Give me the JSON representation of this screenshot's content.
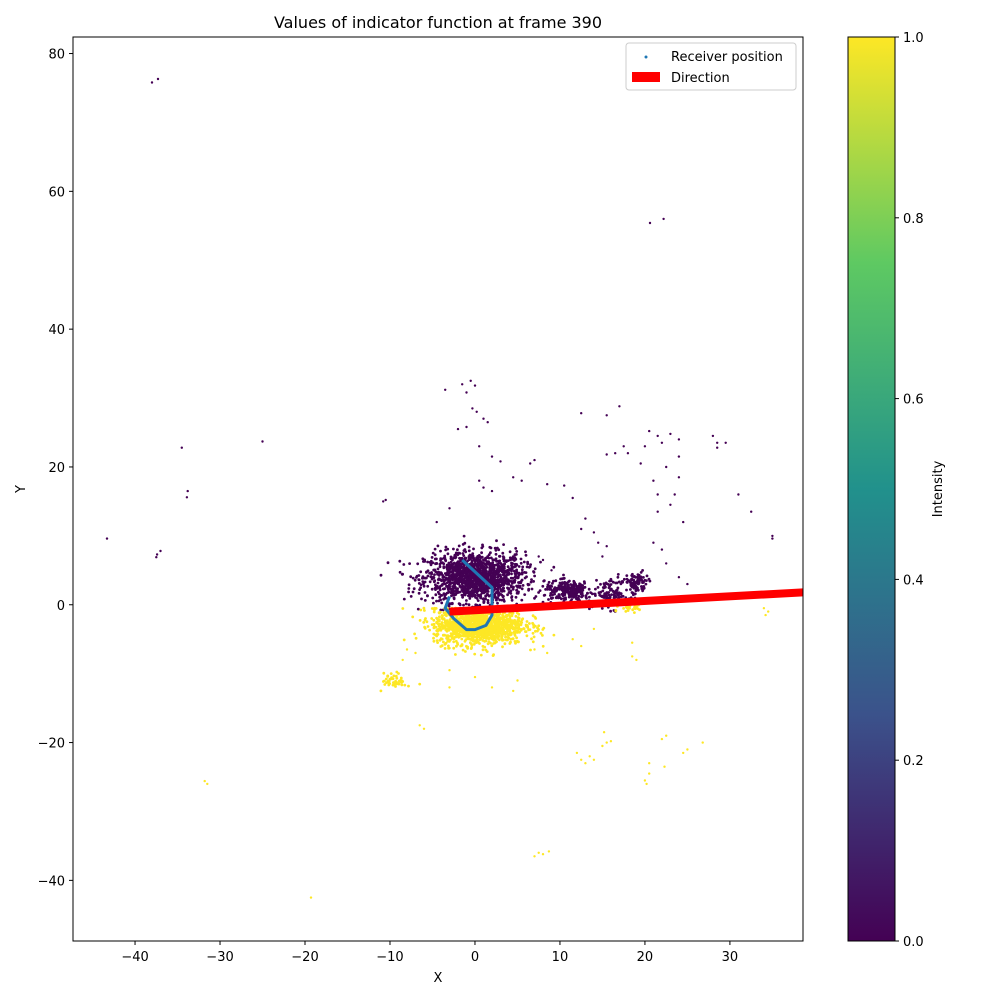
{
  "chart_data": {
    "type": "scatter",
    "title": "Values of indicator function at frame 390",
    "xlabel": "X",
    "ylabel": "Y",
    "xlim": [
      -47.3,
      38.6
    ],
    "ylim": [
      -48.8,
      82.4
    ],
    "xticks": [
      -40,
      -30,
      -20,
      -10,
      0,
      10,
      20,
      30
    ],
    "yticks": [
      -40,
      -20,
      0,
      20,
      40,
      60,
      80
    ],
    "grid": false,
    "legend": {
      "placement": "top-right",
      "entries": [
        {
          "label": "Receiver position",
          "marker": "dot",
          "color": "#1f77b4"
        },
        {
          "label": "Direction",
          "marker": "patch",
          "color": "#ff0000"
        }
      ]
    },
    "colorbar": {
      "label": "Intensity",
      "range": [
        0.0,
        1.0
      ],
      "ticks": [
        "0.0",
        "0.2",
        "0.4",
        "0.6",
        "0.8",
        "1.0"
      ],
      "colormap": "viridis",
      "stops": [
        "#440154",
        "#3b528b",
        "#21918c",
        "#5ec962",
        "#fde725"
      ]
    },
    "colors": {
      "value_0": "#440154",
      "value_1": "#fde725",
      "path": "#1f77b4",
      "direction": "#ff0000"
    },
    "dense_clusters": [
      {
        "value": 0,
        "center": [
          0.0,
          4.0
        ],
        "spread": [
          4.2,
          2.6
        ],
        "count": 1500
      },
      {
        "value": 1,
        "center": [
          0.5,
          -3.0
        ],
        "spread": [
          3.8,
          2.0
        ],
        "count": 1300
      },
      {
        "value": 0,
        "center": [
          11.0,
          2.0
        ],
        "spread": [
          2.0,
          1.0
        ],
        "count": 250
      },
      {
        "value": 0,
        "center": [
          16.0,
          1.5
        ],
        "spread": [
          1.5,
          1.5
        ],
        "count": 120
      },
      {
        "value": 0,
        "center": [
          19.0,
          3.0
        ],
        "spread": [
          1.0,
          1.2
        ],
        "count": 100
      },
      {
        "value": 1,
        "center": [
          -9.5,
          -11.0
        ],
        "spread": [
          1.0,
          0.8
        ],
        "count": 50
      },
      {
        "value": 1,
        "center": [
          18.5,
          -0.5
        ],
        "spread": [
          1.0,
          0.5
        ],
        "count": 30
      }
    ],
    "scatter_points": [
      {
        "x": -38.0,
        "y": 75.8,
        "value": 0
      },
      {
        "x": -37.3,
        "y": 76.3,
        "value": 0
      },
      {
        "x": 20.6,
        "y": 55.4,
        "value": 0
      },
      {
        "x": 22.2,
        "y": 56.0,
        "value": 0
      },
      {
        "x": -34.5,
        "y": 22.8,
        "value": 0
      },
      {
        "x": -25.0,
        "y": 23.7,
        "value": 0
      },
      {
        "x": -43.3,
        "y": 9.6,
        "value": 0
      },
      {
        "x": -33.8,
        "y": 16.5,
        "value": 0
      },
      {
        "x": -33.9,
        "y": 15.6,
        "value": 0
      },
      {
        "x": -37.4,
        "y": 7.3,
        "value": 0
      },
      {
        "x": -37.0,
        "y": 7.8,
        "value": 0
      },
      {
        "x": -37.5,
        "y": 6.9,
        "value": 0
      },
      {
        "x": -10.5,
        "y": 15.2,
        "value": 0
      },
      {
        "x": -10.8,
        "y": 15.0,
        "value": 0
      },
      {
        "x": -3.5,
        "y": 31.2,
        "value": 0
      },
      {
        "x": -1.5,
        "y": 32.0,
        "value": 0
      },
      {
        "x": -0.5,
        "y": 32.5,
        "value": 0
      },
      {
        "x": 0.0,
        "y": 31.8,
        "value": 0
      },
      {
        "x": -1.0,
        "y": 30.8,
        "value": 0
      },
      {
        "x": -0.3,
        "y": 28.5,
        "value": 0
      },
      {
        "x": 0.2,
        "y": 28.0,
        "value": 0
      },
      {
        "x": -2.0,
        "y": 25.5,
        "value": 0
      },
      {
        "x": -1.0,
        "y": 25.8,
        "value": 0
      },
      {
        "x": 1.0,
        "y": 27.0,
        "value": 0
      },
      {
        "x": 1.5,
        "y": 26.5,
        "value": 0
      },
      {
        "x": 0.5,
        "y": 23.0,
        "value": 0
      },
      {
        "x": 2.0,
        "y": 21.5,
        "value": 0
      },
      {
        "x": 3.0,
        "y": 20.8,
        "value": 0
      },
      {
        "x": 0.5,
        "y": 18.0,
        "value": 0
      },
      {
        "x": 1.0,
        "y": 17.0,
        "value": 0
      },
      {
        "x": 2.0,
        "y": 16.5,
        "value": 0
      },
      {
        "x": 4.5,
        "y": 18.5,
        "value": 0
      },
      {
        "x": 5.5,
        "y": 18.0,
        "value": 0
      },
      {
        "x": 6.5,
        "y": 20.5,
        "value": 0
      },
      {
        "x": 7.0,
        "y": 21.0,
        "value": 0
      },
      {
        "x": 8.5,
        "y": 17.5,
        "value": 0
      },
      {
        "x": 10.5,
        "y": 17.3,
        "value": 0
      },
      {
        "x": 11.5,
        "y": 15.5,
        "value": 0
      },
      {
        "x": 12.5,
        "y": 27.8,
        "value": 0
      },
      {
        "x": 15.5,
        "y": 27.5,
        "value": 0
      },
      {
        "x": 17.0,
        "y": 28.8,
        "value": 0
      },
      {
        "x": 15.5,
        "y": 21.8,
        "value": 0
      },
      {
        "x": 16.5,
        "y": 22.0,
        "value": 0
      },
      {
        "x": 17.5,
        "y": 23.0,
        "value": 0
      },
      {
        "x": 18.0,
        "y": 22.0,
        "value": 0
      },
      {
        "x": 19.5,
        "y": 20.5,
        "value": 0
      },
      {
        "x": 20.0,
        "y": 23.0,
        "value": 0
      },
      {
        "x": 20.5,
        "y": 25.2,
        "value": 0
      },
      {
        "x": 21.5,
        "y": 24.5,
        "value": 0
      },
      {
        "x": 22.0,
        "y": 23.5,
        "value": 0
      },
      {
        "x": 23.0,
        "y": 24.8,
        "value": 0
      },
      {
        "x": 24.0,
        "y": 24.0,
        "value": 0
      },
      {
        "x": 24.0,
        "y": 21.5,
        "value": 0
      },
      {
        "x": 22.5,
        "y": 20.0,
        "value": 0
      },
      {
        "x": 21.0,
        "y": 18.0,
        "value": 0
      },
      {
        "x": 21.5,
        "y": 16.0,
        "value": 0
      },
      {
        "x": 23.5,
        "y": 16.0,
        "value": 0
      },
      {
        "x": 23.0,
        "y": 14.5,
        "value": 0
      },
      {
        "x": 21.5,
        "y": 13.5,
        "value": 0
      },
      {
        "x": 24.5,
        "y": 12.0,
        "value": 0
      },
      {
        "x": 24.0,
        "y": 18.5,
        "value": 0
      },
      {
        "x": 28.0,
        "y": 24.5,
        "value": 0
      },
      {
        "x": 28.5,
        "y": 23.5,
        "value": 0
      },
      {
        "x": 29.5,
        "y": 23.5,
        "value": 0
      },
      {
        "x": 28.5,
        "y": 22.8,
        "value": 0
      },
      {
        "x": 31.0,
        "y": 16.0,
        "value": 0
      },
      {
        "x": 32.5,
        "y": 13.5,
        "value": 0
      },
      {
        "x": 35.0,
        "y": 10.0,
        "value": 0
      },
      {
        "x": 35.0,
        "y": 9.6,
        "value": 0
      },
      {
        "x": 22.5,
        "y": 6.0,
        "value": 0
      },
      {
        "x": 24.0,
        "y": 4.0,
        "value": 0
      },
      {
        "x": 25.0,
        "y": 3.0,
        "value": 0
      },
      {
        "x": 21.0,
        "y": 9.0,
        "value": 0
      },
      {
        "x": 22.0,
        "y": 8.0,
        "value": 0
      },
      {
        "x": 12.5,
        "y": 11.0,
        "value": 0
      },
      {
        "x": 13.0,
        "y": 12.5,
        "value": 0
      },
      {
        "x": 14.0,
        "y": 10.5,
        "value": 0
      },
      {
        "x": 14.5,
        "y": 9.0,
        "value": 0
      },
      {
        "x": 15.0,
        "y": 7.0,
        "value": 0
      },
      {
        "x": 15.5,
        "y": 8.5,
        "value": 0
      },
      {
        "x": 8.0,
        "y": 6.5,
        "value": 0
      },
      {
        "x": 7.5,
        "y": 7.0,
        "value": 0
      },
      {
        "x": 9.0,
        "y": 5.0,
        "value": 0
      },
      {
        "x": -3.0,
        "y": 14.0,
        "value": 0
      },
      {
        "x": -4.5,
        "y": 12.0,
        "value": 0
      },
      {
        "x": -31.5,
        "y": -26.0,
        "value": 1
      },
      {
        "x": -31.8,
        "y": -25.6,
        "value": 1
      },
      {
        "x": -19.3,
        "y": -42.5,
        "value": 1
      },
      {
        "x": 7.5,
        "y": -36.0,
        "value": 1
      },
      {
        "x": 8.0,
        "y": -36.2,
        "value": 1
      },
      {
        "x": 8.7,
        "y": -35.8,
        "value": 1
      },
      {
        "x": 7.0,
        "y": -36.5,
        "value": 1
      },
      {
        "x": -6.5,
        "y": -17.5,
        "value": 1
      },
      {
        "x": -6.0,
        "y": -18.0,
        "value": 1
      },
      {
        "x": -8.0,
        "y": -6.5,
        "value": 1
      },
      {
        "x": -8.5,
        "y": -8.0,
        "value": 1
      },
      {
        "x": -7.0,
        "y": -7.0,
        "value": 1
      },
      {
        "x": 12.0,
        "y": -21.5,
        "value": 1
      },
      {
        "x": 12.5,
        "y": -22.5,
        "value": 1
      },
      {
        "x": 13.0,
        "y": -23.0,
        "value": 1
      },
      {
        "x": 13.5,
        "y": -22.0,
        "value": 1
      },
      {
        "x": 14.0,
        "y": -22.5,
        "value": 1
      },
      {
        "x": 15.0,
        "y": -20.5,
        "value": 1
      },
      {
        "x": 15.5,
        "y": -20.0,
        "value": 1
      },
      {
        "x": 16.0,
        "y": -19.8,
        "value": 1
      },
      {
        "x": 15.2,
        "y": -18.5,
        "value": 1
      },
      {
        "x": 20.0,
        "y": -25.5,
        "value": 1
      },
      {
        "x": 20.2,
        "y": -26.0,
        "value": 1
      },
      {
        "x": 20.5,
        "y": -23.0,
        "value": 1
      },
      {
        "x": 20.5,
        "y": -24.5,
        "value": 1
      },
      {
        "x": 22.0,
        "y": -19.5,
        "value": 1
      },
      {
        "x": 22.5,
        "y": -19.0,
        "value": 1
      },
      {
        "x": 22.3,
        "y": -23.5,
        "value": 1
      },
      {
        "x": 25.0,
        "y": -21.0,
        "value": 1
      },
      {
        "x": 24.5,
        "y": -21.5,
        "value": 1
      },
      {
        "x": 26.8,
        "y": -20.0,
        "value": 1
      },
      {
        "x": 18.5,
        "y": -7.5,
        "value": 1
      },
      {
        "x": 19.0,
        "y": -8.0,
        "value": 1
      },
      {
        "x": 18.5,
        "y": -5.5,
        "value": 1
      },
      {
        "x": 34.0,
        "y": -0.5,
        "value": 1
      },
      {
        "x": 34.5,
        "y": -1.0,
        "value": 1
      },
      {
        "x": 34.2,
        "y": -1.5,
        "value": 1
      },
      {
        "x": 5.0,
        "y": -11.0,
        "value": 1
      },
      {
        "x": 4.5,
        "y": -12.5,
        "value": 1
      },
      {
        "x": 2.0,
        "y": -12.0,
        "value": 1
      },
      {
        "x": 7.0,
        "y": -6.5,
        "value": 1
      },
      {
        "x": 8.5,
        "y": -7.0,
        "value": 1
      },
      {
        "x": 11.5,
        "y": -5.0,
        "value": 1
      },
      {
        "x": 12.5,
        "y": -6.0,
        "value": 1
      },
      {
        "x": 14.0,
        "y": -3.5,
        "value": 1
      },
      {
        "x": -3.0,
        "y": -12.0,
        "value": 1
      },
      {
        "x": -3.0,
        "y": -9.5,
        "value": 1
      },
      {
        "x": 0.0,
        "y": -10.5,
        "value": 1
      }
    ],
    "receiver_path": [
      [
        -1.5,
        6.5
      ],
      [
        2.0,
        2.5
      ],
      [
        2.0,
        -1.5
      ],
      [
        1.3,
        -3.0
      ],
      [
        0.0,
        -3.6
      ],
      [
        -1.0,
        -3.6
      ],
      [
        -2.5,
        -2.0
      ],
      [
        -3.5,
        -0.5
      ],
      [
        -3.0,
        1.2
      ]
    ],
    "direction_line": [
      [
        -3.0,
        -1.0
      ],
      [
        38.6,
        1.8
      ]
    ]
  }
}
